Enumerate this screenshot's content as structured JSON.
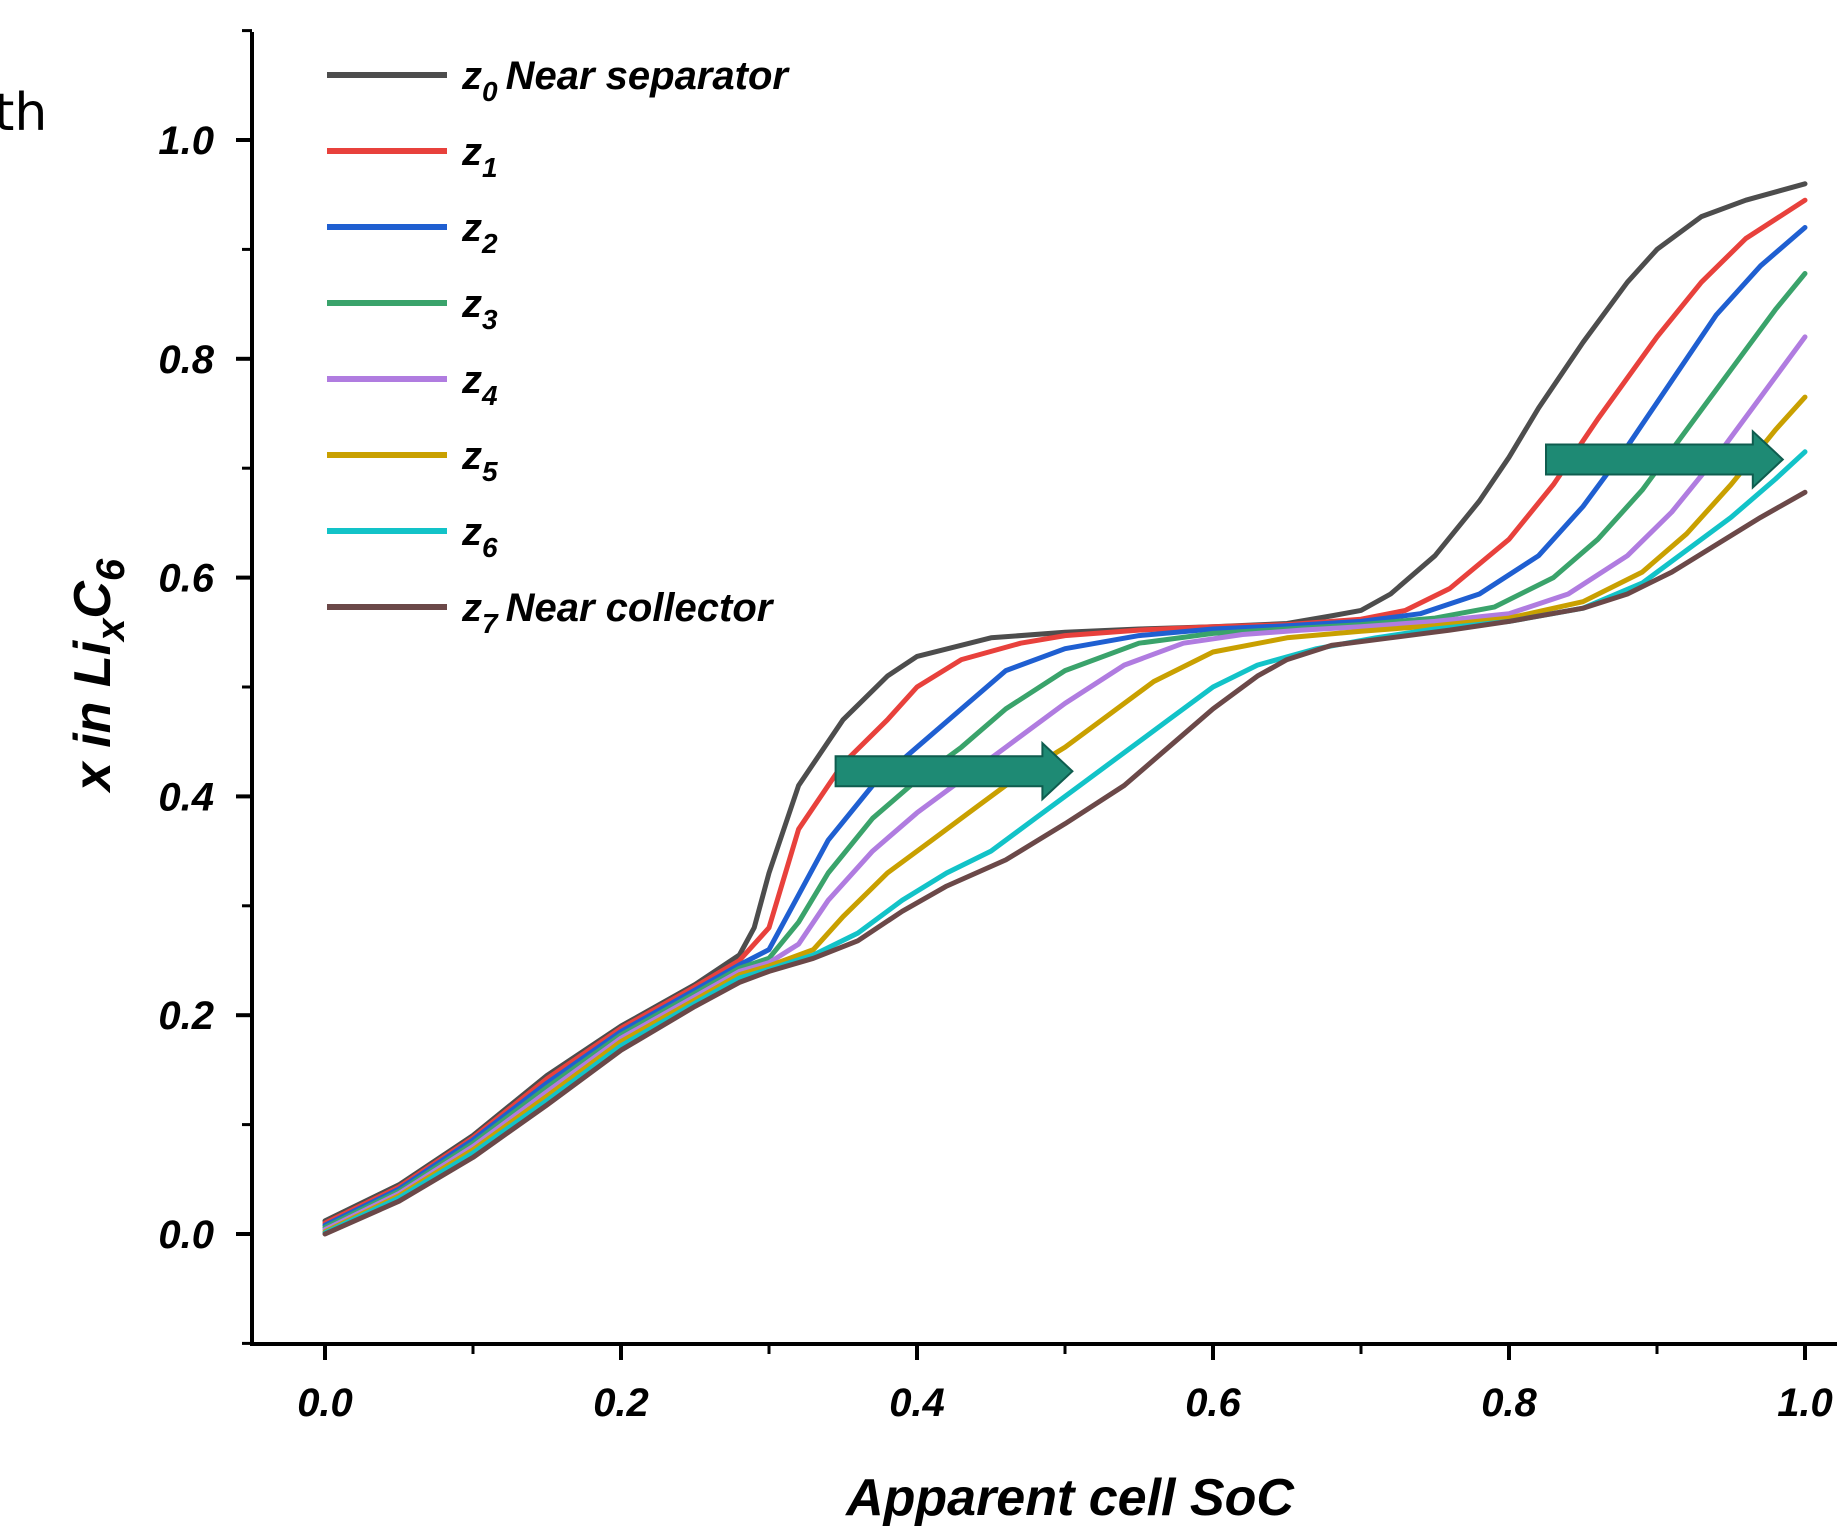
{
  "fragment_text": "th",
  "chart_data": {
    "type": "line",
    "xlabel": "Apparent cell SoC",
    "ylabel": {
      "base": "x in Li",
      "sub": "x",
      "tail": "C",
      "sub2": "6"
    },
    "xlim": [
      -0.05,
      1.0
    ],
    "ylim": [
      -0.1,
      1.1
    ],
    "x_ticks": [
      0.0,
      0.2,
      0.4,
      0.6,
      0.8,
      1.0
    ],
    "x_tick_labels": [
      "0.0",
      "0.2",
      "0.4",
      "0.6",
      "0.8",
      "1.0"
    ],
    "y_ticks": [
      0.0,
      0.2,
      0.4,
      0.6,
      0.8,
      1.0
    ],
    "y_tick_labels": [
      "0.0",
      "0.2",
      "0.4",
      "0.6",
      "0.8",
      "1.0"
    ],
    "grid": false,
    "legend": "top-left",
    "series": [
      {
        "name": "z",
        "sub": "0",
        "suffix": "Near separator",
        "color": "#4d4d4d",
        "points": [
          [
            0,
            0.012
          ],
          [
            0.05,
            0.045
          ],
          [
            0.1,
            0.09
          ],
          [
            0.15,
            0.145
          ],
          [
            0.2,
            0.19
          ],
          [
            0.25,
            0.228
          ],
          [
            0.28,
            0.255
          ],
          [
            0.29,
            0.28
          ],
          [
            0.3,
            0.33
          ],
          [
            0.32,
            0.41
          ],
          [
            0.35,
            0.47
          ],
          [
            0.38,
            0.51
          ],
          [
            0.4,
            0.528
          ],
          [
            0.45,
            0.545
          ],
          [
            0.5,
            0.55
          ],
          [
            0.55,
            0.553
          ],
          [
            0.6,
            0.555
          ],
          [
            0.65,
            0.558
          ],
          [
            0.68,
            0.565
          ],
          [
            0.7,
            0.57
          ],
          [
            0.72,
            0.585
          ],
          [
            0.75,
            0.62
          ],
          [
            0.78,
            0.67
          ],
          [
            0.8,
            0.71
          ],
          [
            0.82,
            0.755
          ],
          [
            0.85,
            0.815
          ],
          [
            0.88,
            0.87
          ],
          [
            0.9,
            0.9
          ],
          [
            0.93,
            0.93
          ],
          [
            0.96,
            0.945
          ],
          [
            1.0,
            0.96
          ]
        ]
      },
      {
        "name": "z",
        "sub": "1",
        "suffix": "",
        "color": "#e8413c",
        "points": [
          [
            0,
            0.01
          ],
          [
            0.05,
            0.043
          ],
          [
            0.1,
            0.088
          ],
          [
            0.15,
            0.142
          ],
          [
            0.2,
            0.188
          ],
          [
            0.25,
            0.226
          ],
          [
            0.28,
            0.25
          ],
          [
            0.3,
            0.28
          ],
          [
            0.32,
            0.37
          ],
          [
            0.35,
            0.43
          ],
          [
            0.38,
            0.47
          ],
          [
            0.4,
            0.5
          ],
          [
            0.43,
            0.525
          ],
          [
            0.47,
            0.54
          ],
          [
            0.5,
            0.547
          ],
          [
            0.55,
            0.552
          ],
          [
            0.6,
            0.555
          ],
          [
            0.65,
            0.557
          ],
          [
            0.7,
            0.562
          ],
          [
            0.73,
            0.57
          ],
          [
            0.76,
            0.59
          ],
          [
            0.8,
            0.635
          ],
          [
            0.83,
            0.685
          ],
          [
            0.86,
            0.745
          ],
          [
            0.9,
            0.82
          ],
          [
            0.93,
            0.87
          ],
          [
            0.96,
            0.91
          ],
          [
            1.0,
            0.945
          ]
        ]
      },
      {
        "name": "z",
        "sub": "2",
        "suffix": "",
        "color": "#1f5fd1",
        "points": [
          [
            0,
            0.008
          ],
          [
            0.05,
            0.041
          ],
          [
            0.1,
            0.086
          ],
          [
            0.15,
            0.138
          ],
          [
            0.2,
            0.185
          ],
          [
            0.25,
            0.223
          ],
          [
            0.28,
            0.246
          ],
          [
            0.3,
            0.26
          ],
          [
            0.32,
            0.31
          ],
          [
            0.34,
            0.36
          ],
          [
            0.37,
            0.41
          ],
          [
            0.4,
            0.445
          ],
          [
            0.43,
            0.48
          ],
          [
            0.46,
            0.515
          ],
          [
            0.5,
            0.535
          ],
          [
            0.55,
            0.547
          ],
          [
            0.6,
            0.553
          ],
          [
            0.65,
            0.556
          ],
          [
            0.7,
            0.56
          ],
          [
            0.74,
            0.567
          ],
          [
            0.78,
            0.585
          ],
          [
            0.82,
            0.62
          ],
          [
            0.85,
            0.665
          ],
          [
            0.88,
            0.72
          ],
          [
            0.91,
            0.78
          ],
          [
            0.94,
            0.84
          ],
          [
            0.97,
            0.885
          ],
          [
            1.0,
            0.92
          ]
        ]
      },
      {
        "name": "z",
        "sub": "3",
        "suffix": "",
        "color": "#3aa36b",
        "points": [
          [
            0,
            0.006
          ],
          [
            0.05,
            0.039
          ],
          [
            0.1,
            0.083
          ],
          [
            0.15,
            0.134
          ],
          [
            0.2,
            0.182
          ],
          [
            0.25,
            0.22
          ],
          [
            0.28,
            0.243
          ],
          [
            0.3,
            0.252
          ],
          [
            0.32,
            0.285
          ],
          [
            0.34,
            0.33
          ],
          [
            0.37,
            0.38
          ],
          [
            0.4,
            0.415
          ],
          [
            0.43,
            0.445
          ],
          [
            0.46,
            0.48
          ],
          [
            0.5,
            0.515
          ],
          [
            0.55,
            0.54
          ],
          [
            0.6,
            0.549
          ],
          [
            0.65,
            0.553
          ],
          [
            0.7,
            0.557
          ],
          [
            0.75,
            0.563
          ],
          [
            0.79,
            0.573
          ],
          [
            0.83,
            0.6
          ],
          [
            0.86,
            0.635
          ],
          [
            0.89,
            0.68
          ],
          [
            0.92,
            0.735
          ],
          [
            0.95,
            0.79
          ],
          [
            0.98,
            0.845
          ],
          [
            1.0,
            0.878
          ]
        ]
      },
      {
        "name": "z",
        "sub": "4",
        "suffix": "",
        "color": "#b07ce0",
        "points": [
          [
            0,
            0.004
          ],
          [
            0.05,
            0.037
          ],
          [
            0.1,
            0.08
          ],
          [
            0.15,
            0.13
          ],
          [
            0.2,
            0.179
          ],
          [
            0.25,
            0.217
          ],
          [
            0.28,
            0.24
          ],
          [
            0.3,
            0.248
          ],
          [
            0.32,
            0.265
          ],
          [
            0.34,
            0.305
          ],
          [
            0.37,
            0.35
          ],
          [
            0.4,
            0.385
          ],
          [
            0.43,
            0.415
          ],
          [
            0.46,
            0.445
          ],
          [
            0.5,
            0.485
          ],
          [
            0.54,
            0.52
          ],
          [
            0.58,
            0.54
          ],
          [
            0.62,
            0.548
          ],
          [
            0.66,
            0.552
          ],
          [
            0.7,
            0.555
          ],
          [
            0.75,
            0.56
          ],
          [
            0.8,
            0.567
          ],
          [
            0.84,
            0.585
          ],
          [
            0.88,
            0.62
          ],
          [
            0.91,
            0.66
          ],
          [
            0.94,
            0.71
          ],
          [
            0.97,
            0.765
          ],
          [
            1.0,
            0.82
          ]
        ]
      },
      {
        "name": "z",
        "sub": "5",
        "suffix": "",
        "color": "#c9a000",
        "points": [
          [
            0,
            0.002
          ],
          [
            0.05,
            0.035
          ],
          [
            0.1,
            0.077
          ],
          [
            0.15,
            0.126
          ],
          [
            0.2,
            0.176
          ],
          [
            0.25,
            0.214
          ],
          [
            0.28,
            0.237
          ],
          [
            0.3,
            0.245
          ],
          [
            0.33,
            0.26
          ],
          [
            0.35,
            0.29
          ],
          [
            0.38,
            0.33
          ],
          [
            0.41,
            0.36
          ],
          [
            0.44,
            0.39
          ],
          [
            0.47,
            0.42
          ],
          [
            0.5,
            0.445
          ],
          [
            0.53,
            0.475
          ],
          [
            0.56,
            0.505
          ],
          [
            0.6,
            0.532
          ],
          [
            0.65,
            0.545
          ],
          [
            0.7,
            0.551
          ],
          [
            0.75,
            0.556
          ],
          [
            0.8,
            0.563
          ],
          [
            0.85,
            0.578
          ],
          [
            0.89,
            0.605
          ],
          [
            0.92,
            0.64
          ],
          [
            0.95,
            0.685
          ],
          [
            0.98,
            0.735
          ],
          [
            1.0,
            0.765
          ]
        ]
      },
      {
        "name": "z",
        "sub": "6",
        "suffix": "",
        "color": "#12c3c8",
        "points": [
          [
            0,
            0.001
          ],
          [
            0.05,
            0.033
          ],
          [
            0.1,
            0.074
          ],
          [
            0.15,
            0.122
          ],
          [
            0.2,
            0.172
          ],
          [
            0.25,
            0.211
          ],
          [
            0.28,
            0.234
          ],
          [
            0.3,
            0.242
          ],
          [
            0.33,
            0.255
          ],
          [
            0.36,
            0.275
          ],
          [
            0.39,
            0.305
          ],
          [
            0.42,
            0.33
          ],
          [
            0.45,
            0.35
          ],
          [
            0.48,
            0.38
          ],
          [
            0.51,
            0.41
          ],
          [
            0.54,
            0.44
          ],
          [
            0.57,
            0.47
          ],
          [
            0.6,
            0.5
          ],
          [
            0.63,
            0.52
          ],
          [
            0.67,
            0.535
          ],
          [
            0.71,
            0.545
          ],
          [
            0.75,
            0.553
          ],
          [
            0.8,
            0.56
          ],
          [
            0.85,
            0.572
          ],
          [
            0.89,
            0.595
          ],
          [
            0.92,
            0.625
          ],
          [
            0.95,
            0.655
          ],
          [
            0.98,
            0.69
          ],
          [
            1.0,
            0.715
          ]
        ]
      },
      {
        "name": "z",
        "sub": "7",
        "suffix": "Near collector",
        "color": "#6b4848",
        "points": [
          [
            0,
            0.0
          ],
          [
            0.05,
            0.03
          ],
          [
            0.1,
            0.07
          ],
          [
            0.15,
            0.118
          ],
          [
            0.2,
            0.168
          ],
          [
            0.25,
            0.208
          ],
          [
            0.28,
            0.23
          ],
          [
            0.3,
            0.24
          ],
          [
            0.33,
            0.252
          ],
          [
            0.36,
            0.268
          ],
          [
            0.39,
            0.295
          ],
          [
            0.42,
            0.318
          ],
          [
            0.46,
            0.342
          ],
          [
            0.5,
            0.375
          ],
          [
            0.54,
            0.41
          ],
          [
            0.57,
            0.445
          ],
          [
            0.6,
            0.48
          ],
          [
            0.63,
            0.51
          ],
          [
            0.65,
            0.525
          ],
          [
            0.68,
            0.538
          ],
          [
            0.72,
            0.545
          ],
          [
            0.76,
            0.552
          ],
          [
            0.8,
            0.56
          ],
          [
            0.85,
            0.572
          ],
          [
            0.88,
            0.585
          ],
          [
            0.91,
            0.605
          ],
          [
            0.94,
            0.63
          ],
          [
            0.97,
            0.655
          ],
          [
            1.0,
            0.678
          ]
        ]
      }
    ],
    "annotations": [
      {
        "type": "arrow",
        "from": [
          0.345,
          0.423
        ],
        "to": [
          0.505,
          0.423
        ],
        "color": "#1e8a74"
      },
      {
        "type": "arrow",
        "from": [
          0.825,
          0.708
        ],
        "to": [
          0.985,
          0.708
        ],
        "color": "#1e8a74"
      }
    ]
  }
}
